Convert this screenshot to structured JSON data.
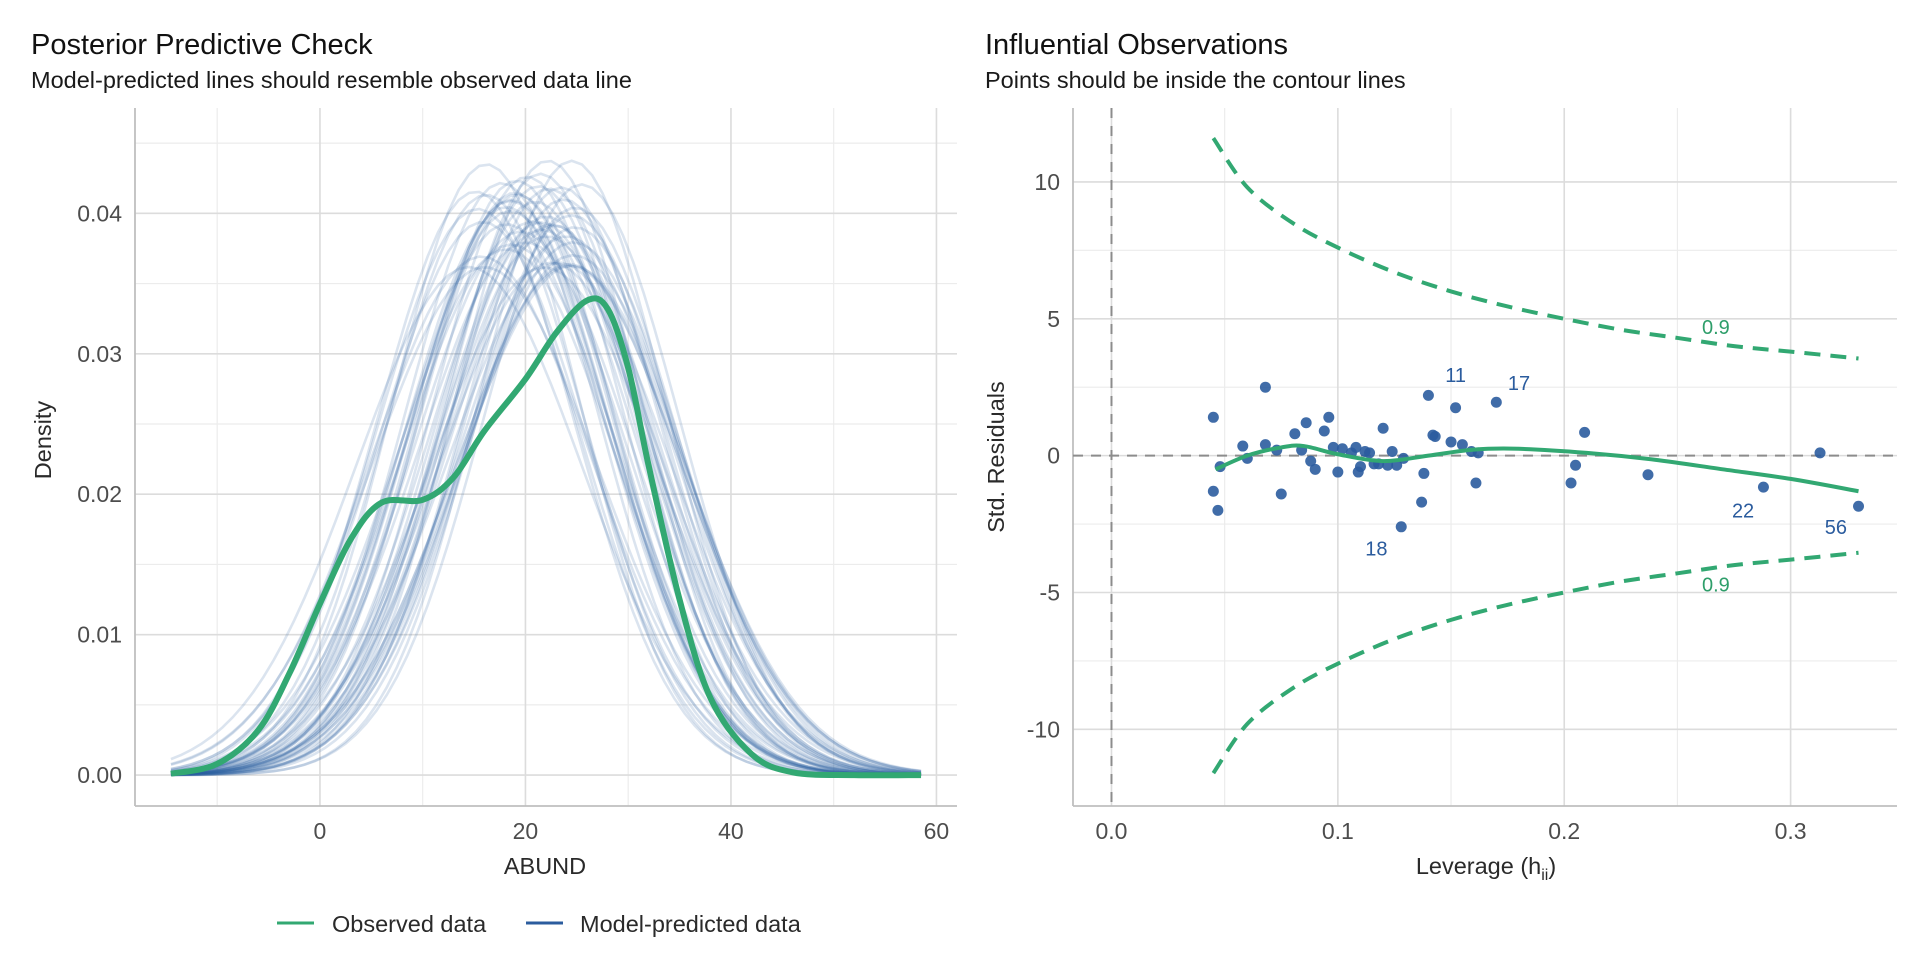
{
  "colors": {
    "observed": "#32a872",
    "predicted": "#2b5c9e",
    "grid": "#dcdcdc",
    "axis": "#bfbfbf",
    "reference": "#8c8c8c"
  },
  "chart_data": [
    {
      "id": "ppc",
      "type": "line",
      "title": "Posterior Predictive Check",
      "subtitle": "Model-predicted lines should resemble observed data line",
      "xlabel": "ABUND",
      "ylabel": "Density",
      "xlim": [
        -18,
        62
      ],
      "ylim": [
        -0.0022,
        0.0475
      ],
      "x_ticks": [
        0,
        20,
        40,
        60
      ],
      "x_tick_labels": [
        "0",
        "20",
        "40",
        "60"
      ],
      "y_ticks": [
        0.0,
        0.01,
        0.02,
        0.03,
        0.04
      ],
      "y_tick_labels": [
        "0.00",
        "0.01",
        "0.02",
        "0.03",
        "0.04"
      ],
      "grid": true,
      "x_range": [
        -14.5,
        58.5
      ],
      "series": [
        {
          "name": "Observed data",
          "points": [
            [
              -14.5,
              0.0001
            ],
            [
              -10,
              0.0008
            ],
            [
              -6,
              0.0032
            ],
            [
              -3,
              0.0072
            ],
            [
              0,
              0.0122
            ],
            [
              3,
              0.0168
            ],
            [
              6,
              0.0194
            ],
            [
              10,
              0.0196
            ],
            [
              13,
              0.0212
            ],
            [
              16,
              0.0245
            ],
            [
              20,
              0.0282
            ],
            [
              23,
              0.0315
            ],
            [
              26,
              0.0338
            ],
            [
              28,
              0.0332
            ],
            [
              30,
              0.029
            ],
            [
              32,
              0.022
            ],
            [
              35,
              0.0125
            ],
            [
              38,
              0.0055
            ],
            [
              42,
              0.0015
            ],
            [
              46,
              0.0002
            ],
            [
              52,
              0.0
            ],
            [
              58.5,
              0.0
            ]
          ]
        },
        {
          "name": "Model-predicted data",
          "n_draws": 50,
          "density_model": "gaussian",
          "mean_range": [
            14.5,
            25.5
          ],
          "sd_range": [
            9.0,
            11.2
          ]
        }
      ],
      "legend": {
        "position": "bottom",
        "entries": [
          "Observed data",
          "Model-predicted data"
        ]
      }
    },
    {
      "id": "influence",
      "type": "scatter",
      "title": "Influential Observations",
      "subtitle": "Points should be inside the contour lines",
      "xlabel_main": "Leverage (h",
      "xlabel_sub": "ii",
      "xlabel_close": ")",
      "ylabel": "Std. Residuals",
      "xlim": [
        -0.017,
        0.347
      ],
      "ylim": [
        -12.8,
        12.7
      ],
      "x_ticks": [
        0.0,
        0.1,
        0.2,
        0.3
      ],
      "x_tick_labels": [
        "0.0",
        "0.1",
        "0.2",
        "0.3"
      ],
      "y_ticks": [
        -10,
        -5,
        0,
        5,
        10
      ],
      "y_tick_labels": [
        "-10",
        "-5",
        "0",
        "5",
        "10"
      ],
      "grid": true,
      "reference_lines": {
        "x": 0,
        "y": 0
      },
      "points": [
        [
          0.045,
          1.4
        ],
        [
          0.045,
          -1.3
        ],
        [
          0.047,
          -2.0
        ],
        [
          0.048,
          -0.4
        ],
        [
          0.058,
          0.35
        ],
        [
          0.06,
          -0.1
        ],
        [
          0.068,
          2.5
        ],
        [
          0.068,
          0.4
        ],
        [
          0.073,
          0.2
        ],
        [
          0.075,
          -1.4
        ],
        [
          0.081,
          0.8
        ],
        [
          0.084,
          0.2
        ],
        [
          0.086,
          1.2
        ],
        [
          0.088,
          -0.2
        ],
        [
          0.09,
          -0.5
        ],
        [
          0.094,
          0.9
        ],
        [
          0.096,
          1.4
        ],
        [
          0.098,
          0.3
        ],
        [
          0.1,
          -0.6
        ],
        [
          0.102,
          0.25
        ],
        [
          0.106,
          0.1
        ],
        [
          0.108,
          0.3
        ],
        [
          0.109,
          -0.6
        ],
        [
          0.11,
          -0.4
        ],
        [
          0.112,
          0.15
        ],
        [
          0.114,
          0.1
        ],
        [
          0.116,
          -0.3
        ],
        [
          0.118,
          -0.3
        ],
        [
          0.12,
          1.0
        ],
        [
          0.122,
          -0.35
        ],
        [
          0.124,
          0.15
        ],
        [
          0.126,
          -0.35
        ],
        [
          0.128,
          -2.6
        ],
        [
          0.129,
          -0.1
        ],
        [
          0.137,
          -1.7
        ],
        [
          0.138,
          -0.65
        ],
        [
          0.14,
          2.2
        ],
        [
          0.142,
          0.75
        ],
        [
          0.143,
          0.7
        ],
        [
          0.15,
          0.5
        ],
        [
          0.152,
          1.75
        ],
        [
          0.155,
          0.4
        ],
        [
          0.159,
          0.15
        ],
        [
          0.161,
          -1.0
        ],
        [
          0.162,
          0.1
        ],
        [
          0.17,
          1.95
        ],
        [
          0.203,
          -1.0
        ],
        [
          0.205,
          -0.35
        ],
        [
          0.209,
          0.85
        ],
        [
          0.237,
          -0.7
        ],
        [
          0.288,
          -1.15
        ],
        [
          0.313,
          0.1
        ],
        [
          0.33,
          -1.85
        ]
      ],
      "point_labels": [
        {
          "text": "11",
          "x": 0.152,
          "y": 2.95
        },
        {
          "text": "17",
          "x": 0.18,
          "y": 2.65
        },
        {
          "text": "18",
          "x": 0.117,
          "y": -3.4
        },
        {
          "text": "22",
          "x": 0.279,
          "y": -2.0
        },
        {
          "text": "56",
          "x": 0.32,
          "y": -2.6
        }
      ],
      "smooth": [
        [
          0.046,
          -0.5
        ],
        [
          0.06,
          0.0
        ],
        [
          0.075,
          0.3
        ],
        [
          0.085,
          0.35
        ],
        [
          0.1,
          0.05
        ],
        [
          0.12,
          -0.2
        ],
        [
          0.14,
          0.0
        ],
        [
          0.16,
          0.22
        ],
        [
          0.18,
          0.25
        ],
        [
          0.21,
          0.1
        ],
        [
          0.24,
          -0.15
        ],
        [
          0.27,
          -0.5
        ],
        [
          0.3,
          -0.85
        ],
        [
          0.33,
          -1.3
        ]
      ],
      "contours": {
        "level_label": "0.9",
        "upper": [
          [
            0.045,
            11.6
          ],
          [
            0.06,
            9.8
          ],
          [
            0.08,
            8.5
          ],
          [
            0.1,
            7.6
          ],
          [
            0.125,
            6.7
          ],
          [
            0.15,
            6.0
          ],
          [
            0.175,
            5.45
          ],
          [
            0.2,
            5.0
          ],
          [
            0.225,
            4.6
          ],
          [
            0.25,
            4.3
          ],
          [
            0.275,
            4.0
          ],
          [
            0.3,
            3.8
          ],
          [
            0.33,
            3.55
          ]
        ],
        "lower": [
          [
            0.045,
            -11.6
          ],
          [
            0.06,
            -9.8
          ],
          [
            0.08,
            -8.5
          ],
          [
            0.1,
            -7.6
          ],
          [
            0.125,
            -6.7
          ],
          [
            0.15,
            -6.0
          ],
          [
            0.175,
            -5.45
          ],
          [
            0.2,
            -5.0
          ],
          [
            0.225,
            -4.6
          ],
          [
            0.25,
            -4.3
          ],
          [
            0.275,
            -4.0
          ],
          [
            0.3,
            -3.8
          ],
          [
            0.33,
            -3.55
          ]
        ],
        "labels": [
          {
            "text": "0.9",
            "x": 0.267,
            "y": 4.7
          },
          {
            "text": "0.9",
            "x": 0.267,
            "y": -4.7
          }
        ]
      }
    }
  ]
}
